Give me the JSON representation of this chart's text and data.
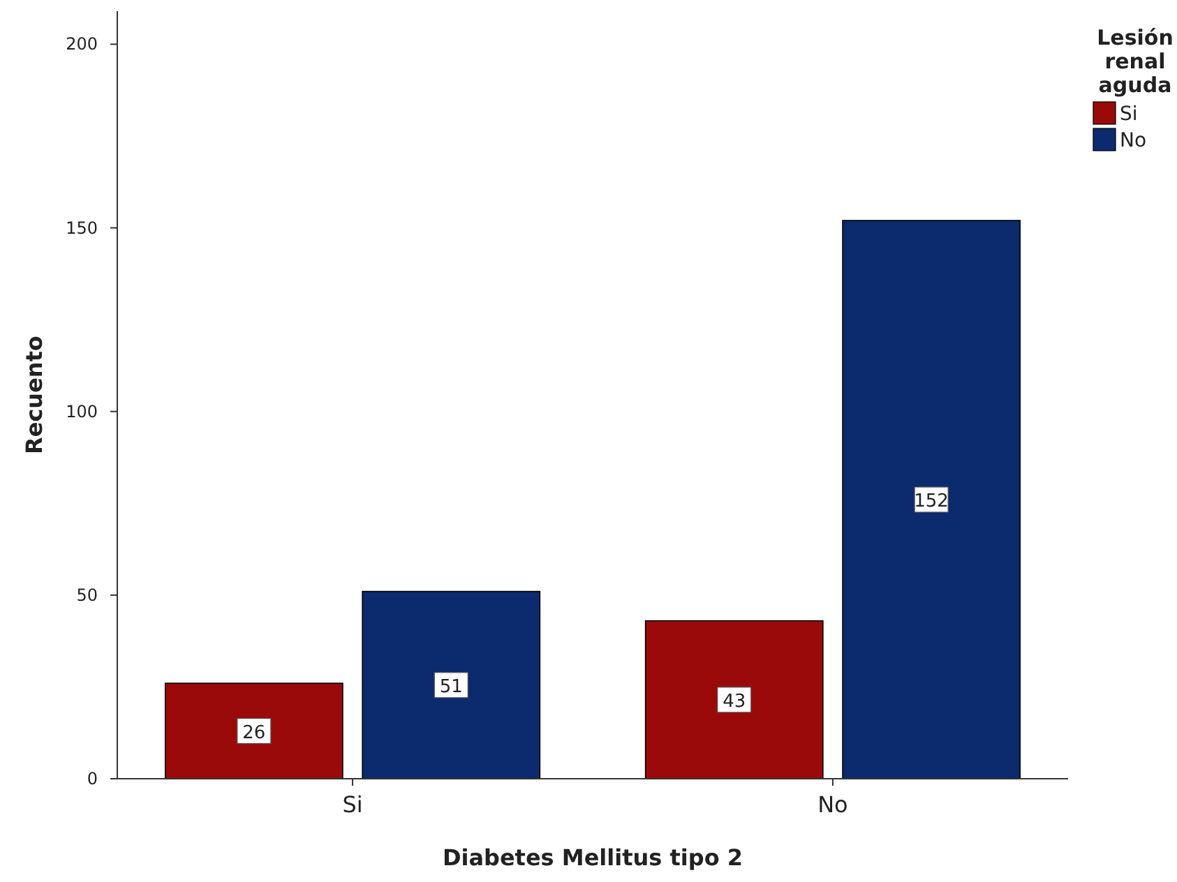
{
  "chart_data": {
    "type": "bar",
    "xlabel": "Diabetes Mellitus tipo 2",
    "ylabel": "Recuento",
    "legend_title": "Lesión renal aguda",
    "categories": [
      "Si",
      "No"
    ],
    "series": [
      {
        "name": "Si",
        "color": "#9b0a0a",
        "values": [
          26,
          43
        ]
      },
      {
        "name": "No",
        "color": "#0c2a6e",
        "values": [
          51,
          152
        ]
      }
    ],
    "ylim": [
      0,
      209
    ],
    "yticks": [
      0,
      50,
      100,
      150,
      200
    ],
    "grid": false,
    "legend": "top right",
    "data_labels": true
  }
}
